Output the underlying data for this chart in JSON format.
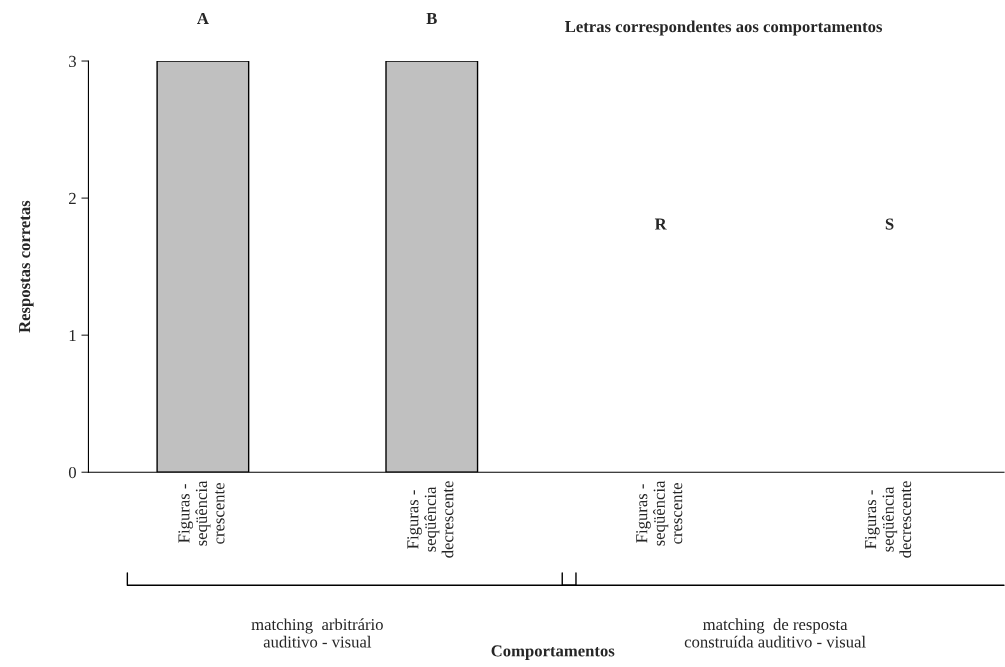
{
  "chart_data": {
    "type": "bar",
    "title": "Letras correspondentes aos comportamentos",
    "ylabel": "Respostas corretas",
    "categories": [
      "Figuras -\nseqüência\ncrescente",
      "Figuras -\nseqüência\ndecrescente",
      "Figuras -\nseqüência\ncrescente",
      "Figuras -\nseqüência\ndecrescente"
    ],
    "values": [
      3,
      3,
      0,
      0
    ],
    "color": "#c0c0c0",
    "ylim": [
      0,
      3
    ],
    "yticks": [
      0,
      1,
      2,
      3
    ],
    "grid": false,
    "annotations": [
      "A",
      "B",
      "R",
      "S",
      "matching  arbitrário\nauditivo - visual",
      "matching  de resposta\nconstruída auditivo - visual",
      "Comportamentos"
    ]
  }
}
